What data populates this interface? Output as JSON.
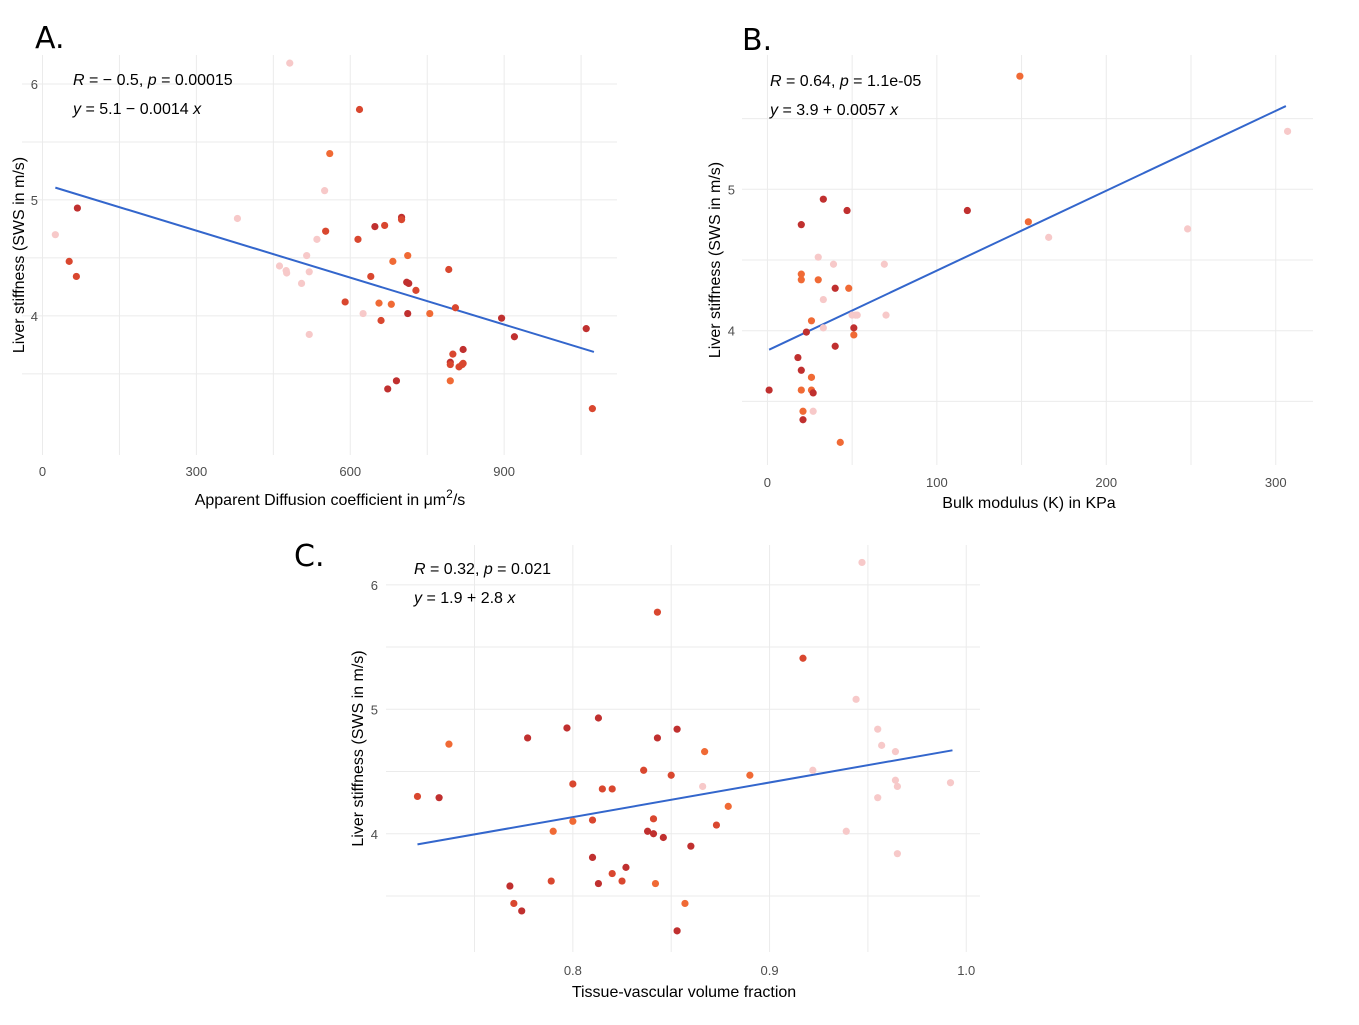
{
  "colors": {
    "group_dark": "#c0302f",
    "group_red": "#d9472f",
    "group_orange": "#f06a35",
    "group_pink": "#f7c9c9",
    "fit_line": "#3366cc",
    "grid": "#ebebeb"
  },
  "chart_data": [
    {
      "panel": "A.",
      "type": "scatter",
      "title": "",
      "xlabel": "Apparent Diffusion coefficient in μm²/s",
      "xlabel_main": "Apparent Diffusion coefficient in μm",
      "xlabel_sup": "2",
      "xlabel_tail": "/s",
      "ylabel": "Liver stiffness (SWS in m/s)",
      "xlim": [
        -40,
        1120
      ],
      "ylim": [
        2.8,
        6.25
      ],
      "x_ticks": [
        0,
        300,
        600,
        900
      ],
      "x_tick_labels": [
        "0",
        "300",
        "600",
        "900"
      ],
      "y_ticks": [
        4,
        5,
        6
      ],
      "y_tick_labels": [
        "4",
        "5",
        "6"
      ],
      "x_minor": [
        150,
        450,
        750,
        1050
      ],
      "y_minor": [
        3.5,
        4.5,
        5.5
      ],
      "grid": true,
      "stat_line1": {
        "R": "R",
        "eq": " = − 0.5, ",
        "p": "p",
        "pval": " = 0.00015"
      },
      "stat_line2": {
        "y": "y",
        "eq": " = 5.1 − 0.0014 ",
        "x": "x"
      },
      "fit": {
        "intercept": 5.14,
        "slope": -0.00135,
        "x_range": [
          25,
          1075
        ]
      },
      "points": [
        {
          "x": 25,
          "y": 4.7,
          "g": "pink"
        },
        {
          "x": 52,
          "y": 4.47,
          "g": "red"
        },
        {
          "x": 66,
          "y": 4.34,
          "g": "red"
        },
        {
          "x": 68,
          "y": 4.93,
          "g": "dark"
        },
        {
          "x": 380,
          "y": 4.84,
          "g": "pink"
        },
        {
          "x": 462,
          "y": 4.43,
          "g": "pink"
        },
        {
          "x": 475,
          "y": 4.39,
          "g": "pink"
        },
        {
          "x": 476,
          "y": 4.37,
          "g": "pink"
        },
        {
          "x": 482,
          "y": 6.18,
          "g": "pink"
        },
        {
          "x": 505,
          "y": 4.28,
          "g": "pink"
        },
        {
          "x": 515,
          "y": 4.52,
          "g": "pink"
        },
        {
          "x": 520,
          "y": 4.38,
          "g": "pink"
        },
        {
          "x": 520,
          "y": 3.84,
          "g": "pink"
        },
        {
          "x": 535,
          "y": 4.66,
          "g": "pink"
        },
        {
          "x": 550,
          "y": 5.08,
          "g": "pink"
        },
        {
          "x": 552,
          "y": 4.73,
          "g": "red"
        },
        {
          "x": 560,
          "y": 5.4,
          "g": "orange"
        },
        {
          "x": 590,
          "y": 4.12,
          "g": "red"
        },
        {
          "x": 615,
          "y": 4.66,
          "g": "red"
        },
        {
          "x": 618,
          "y": 5.78,
          "g": "red"
        },
        {
          "x": 625,
          "y": 4.02,
          "g": "pink"
        },
        {
          "x": 640,
          "y": 4.34,
          "g": "red"
        },
        {
          "x": 648,
          "y": 4.77,
          "g": "dark"
        },
        {
          "x": 656,
          "y": 4.11,
          "g": "orange"
        },
        {
          "x": 660,
          "y": 3.96,
          "g": "red"
        },
        {
          "x": 667,
          "y": 4.78,
          "g": "red"
        },
        {
          "x": 673,
          "y": 3.37,
          "g": "dark"
        },
        {
          "x": 680,
          "y": 4.1,
          "g": "orange"
        },
        {
          "x": 683,
          "y": 4.47,
          "g": "orange"
        },
        {
          "x": 690,
          "y": 3.44,
          "g": "dark"
        },
        {
          "x": 700,
          "y": 4.85,
          "g": "dark"
        },
        {
          "x": 700,
          "y": 4.83,
          "g": "red"
        },
        {
          "x": 710,
          "y": 4.29,
          "g": "dark"
        },
        {
          "x": 712,
          "y": 4.52,
          "g": "orange"
        },
        {
          "x": 712,
          "y": 4.02,
          "g": "dark"
        },
        {
          "x": 714,
          "y": 4.28,
          "g": "dark"
        },
        {
          "x": 728,
          "y": 4.22,
          "g": "red"
        },
        {
          "x": 755,
          "y": 4.02,
          "g": "orange"
        },
        {
          "x": 792,
          "y": 4.4,
          "g": "red"
        },
        {
          "x": 795,
          "y": 3.6,
          "g": "dark"
        },
        {
          "x": 795,
          "y": 3.58,
          "g": "red"
        },
        {
          "x": 795,
          "y": 3.44,
          "g": "orange"
        },
        {
          "x": 800,
          "y": 3.67,
          "g": "red"
        },
        {
          "x": 805,
          "y": 4.07,
          "g": "red"
        },
        {
          "x": 812,
          "y": 3.56,
          "g": "red"
        },
        {
          "x": 818,
          "y": 3.58,
          "g": "red"
        },
        {
          "x": 820,
          "y": 3.59,
          "g": "red"
        },
        {
          "x": 820,
          "y": 3.71,
          "g": "dark"
        },
        {
          "x": 895,
          "y": 3.98,
          "g": "dark"
        },
        {
          "x": 920,
          "y": 3.82,
          "g": "dark"
        },
        {
          "x": 1060,
          "y": 3.89,
          "g": "dark"
        },
        {
          "x": 1072,
          "y": 3.2,
          "g": "red"
        }
      ]
    },
    {
      "panel": "B.",
      "type": "scatter",
      "title": "",
      "xlabel": "Bulk modulus (K) in KPa",
      "xlabel_main": "Bulk modulus (K) in KPa",
      "xlabel_sup": "",
      "xlabel_tail": "",
      "ylabel": "Liver stiffness (SWS in m/s)",
      "xlim": [
        -15,
        322
      ],
      "ylim": [
        3.05,
        5.95
      ],
      "x_ticks": [
        0,
        100,
        200,
        300
      ],
      "x_tick_labels": [
        "0",
        "100",
        "200",
        "300"
      ],
      "y_ticks": [
        4,
        5
      ],
      "y_tick_labels": [
        "4",
        "5"
      ],
      "x_minor": [
        50,
        150,
        250
      ],
      "y_minor": [
        3.5,
        4.5,
        5.5
      ],
      "grid": true,
      "stat_line1": {
        "R": "R",
        "eq": " = 0.64, ",
        "p": "p",
        "pval": " = 1.1e-05"
      },
      "stat_line2": {
        "y": "y",
        "eq": " = 3.9 + 0.0057 ",
        "x": "x"
      },
      "fit": {
        "intercept": 3.86,
        "slope": 0.00565,
        "x_range": [
          1,
          306
        ]
      },
      "points": [
        {
          "x": 1,
          "y": 3.58,
          "g": "dark"
        },
        {
          "x": 18,
          "y": 3.81,
          "g": "dark"
        },
        {
          "x": 20,
          "y": 4.75,
          "g": "dark"
        },
        {
          "x": 20,
          "y": 4.4,
          "g": "orange"
        },
        {
          "x": 20,
          "y": 4.36,
          "g": "orange"
        },
        {
          "x": 20,
          "y": 3.72,
          "g": "dark"
        },
        {
          "x": 20,
          "y": 3.58,
          "g": "orange"
        },
        {
          "x": 21,
          "y": 3.43,
          "g": "orange"
        },
        {
          "x": 21,
          "y": 3.37,
          "g": "dark"
        },
        {
          "x": 23,
          "y": 3.99,
          "g": "dark"
        },
        {
          "x": 26,
          "y": 4.07,
          "g": "orange"
        },
        {
          "x": 26,
          "y": 3.67,
          "g": "orange"
        },
        {
          "x": 26,
          "y": 3.58,
          "g": "orange"
        },
        {
          "x": 27,
          "y": 3.56,
          "g": "dark"
        },
        {
          "x": 27,
          "y": 3.43,
          "g": "pink"
        },
        {
          "x": 30,
          "y": 4.52,
          "g": "pink"
        },
        {
          "x": 30,
          "y": 4.36,
          "g": "orange"
        },
        {
          "x": 33,
          "y": 4.93,
          "g": "dark"
        },
        {
          "x": 33,
          "y": 4.22,
          "g": "pink"
        },
        {
          "x": 33,
          "y": 4.02,
          "g": "pink"
        },
        {
          "x": 39,
          "y": 4.47,
          "g": "pink"
        },
        {
          "x": 40,
          "y": 4.3,
          "g": "dark"
        },
        {
          "x": 40,
          "y": 3.89,
          "g": "dark"
        },
        {
          "x": 43,
          "y": 3.21,
          "g": "orange"
        },
        {
          "x": 47,
          "y": 4.85,
          "g": "dark"
        },
        {
          "x": 48,
          "y": 4.3,
          "g": "orange"
        },
        {
          "x": 50,
          "y": 4.11,
          "g": "pink"
        },
        {
          "x": 51,
          "y": 3.97,
          "g": "orange"
        },
        {
          "x": 51,
          "y": 4.02,
          "g": "dark"
        },
        {
          "x": 52,
          "y": 4.11,
          "g": "pink"
        },
        {
          "x": 53,
          "y": 4.11,
          "g": "pink"
        },
        {
          "x": 69,
          "y": 4.47,
          "g": "pink"
        },
        {
          "x": 70,
          "y": 4.11,
          "g": "pink"
        },
        {
          "x": 118,
          "y": 4.85,
          "g": "dark"
        },
        {
          "x": 149,
          "y": 5.8,
          "g": "orange"
        },
        {
          "x": 154,
          "y": 4.77,
          "g": "orange"
        },
        {
          "x": 166,
          "y": 4.66,
          "g": "pink"
        },
        {
          "x": 248,
          "y": 4.72,
          "g": "pink"
        },
        {
          "x": 307,
          "y": 5.41,
          "g": "pink"
        }
      ]
    },
    {
      "panel": "C.",
      "type": "scatter",
      "title": "",
      "xlabel": "Tissue-vascular volume fraction",
      "xlabel_main": "Tissue-vascular volume fraction",
      "xlabel_sup": "",
      "xlabel_tail": "",
      "ylabel": "Liver stiffness (SWS in m/s)",
      "xlim": [
        0.705,
        1.007
      ],
      "ylim": [
        3.05,
        6.32
      ],
      "x_ticks": [
        0.8,
        0.9,
        1.0
      ],
      "x_tick_labels": [
        "0.8",
        "0.9",
        "1.0"
      ],
      "y_ticks": [
        4,
        5,
        6
      ],
      "y_tick_labels": [
        "4",
        "5",
        "6"
      ],
      "x_minor": [
        0.75,
        0.85,
        0.95
      ],
      "y_minor": [
        3.5,
        4.5,
        5.5
      ],
      "grid": true,
      "stat_line1": {
        "R": "R",
        "eq": " = 0.32, ",
        "p": "p",
        "pval": " = 0.021"
      },
      "stat_line2": {
        "y": "y",
        "eq": " = 1.9 + 2.8 ",
        "x": "x"
      },
      "fit": {
        "intercept": 1.91,
        "slope": 2.78,
        "x_range": [
          0.721,
          0.993
        ]
      },
      "points": [
        {
          "x": 0.721,
          "y": 4.3,
          "g": "red"
        },
        {
          "x": 0.732,
          "y": 4.29,
          "g": "dark"
        },
        {
          "x": 0.737,
          "y": 4.72,
          "g": "orange"
        },
        {
          "x": 0.768,
          "y": 3.58,
          "g": "dark"
        },
        {
          "x": 0.77,
          "y": 3.44,
          "g": "red"
        },
        {
          "x": 0.774,
          "y": 3.38,
          "g": "dark"
        },
        {
          "x": 0.777,
          "y": 4.77,
          "g": "dark"
        },
        {
          "x": 0.789,
          "y": 3.62,
          "g": "red"
        },
        {
          "x": 0.79,
          "y": 4.02,
          "g": "orange"
        },
        {
          "x": 0.797,
          "y": 4.85,
          "g": "dark"
        },
        {
          "x": 0.8,
          "y": 4.4,
          "g": "red"
        },
        {
          "x": 0.8,
          "y": 4.1,
          "g": "orange"
        },
        {
          "x": 0.81,
          "y": 4.11,
          "g": "red"
        },
        {
          "x": 0.81,
          "y": 3.81,
          "g": "dark"
        },
        {
          "x": 0.813,
          "y": 4.93,
          "g": "dark"
        },
        {
          "x": 0.813,
          "y": 3.6,
          "g": "dark"
        },
        {
          "x": 0.815,
          "y": 4.36,
          "g": "red"
        },
        {
          "x": 0.82,
          "y": 4.36,
          "g": "red"
        },
        {
          "x": 0.82,
          "y": 3.68,
          "g": "red"
        },
        {
          "x": 0.825,
          "y": 3.62,
          "g": "red"
        },
        {
          "x": 0.827,
          "y": 3.73,
          "g": "dark"
        },
        {
          "x": 0.836,
          "y": 4.51,
          "g": "red"
        },
        {
          "x": 0.838,
          "y": 4.02,
          "g": "dark"
        },
        {
          "x": 0.841,
          "y": 4.12,
          "g": "red"
        },
        {
          "x": 0.841,
          "y": 4.0,
          "g": "dark"
        },
        {
          "x": 0.842,
          "y": 3.6,
          "g": "orange"
        },
        {
          "x": 0.843,
          "y": 5.78,
          "g": "red"
        },
        {
          "x": 0.843,
          "y": 4.77,
          "g": "dark"
        },
        {
          "x": 0.846,
          "y": 3.97,
          "g": "dark"
        },
        {
          "x": 0.85,
          "y": 4.47,
          "g": "red"
        },
        {
          "x": 0.853,
          "y": 4.84,
          "g": "dark"
        },
        {
          "x": 0.853,
          "y": 3.22,
          "g": "dark"
        },
        {
          "x": 0.857,
          "y": 3.44,
          "g": "orange"
        },
        {
          "x": 0.86,
          "y": 3.9,
          "g": "dark"
        },
        {
          "x": 0.866,
          "y": 4.38,
          "g": "pink"
        },
        {
          "x": 0.867,
          "y": 4.66,
          "g": "orange"
        },
        {
          "x": 0.873,
          "y": 4.07,
          "g": "red"
        },
        {
          "x": 0.879,
          "y": 4.22,
          "g": "orange"
        },
        {
          "x": 0.89,
          "y": 4.47,
          "g": "orange"
        },
        {
          "x": 0.917,
          "y": 5.41,
          "g": "red"
        },
        {
          "x": 0.922,
          "y": 4.51,
          "g": "pink"
        },
        {
          "x": 0.939,
          "y": 4.02,
          "g": "pink"
        },
        {
          "x": 0.944,
          "y": 5.08,
          "g": "pink"
        },
        {
          "x": 0.947,
          "y": 6.18,
          "g": "pink"
        },
        {
          "x": 0.955,
          "y": 4.84,
          "g": "pink"
        },
        {
          "x": 0.955,
          "y": 4.29,
          "g": "pink"
        },
        {
          "x": 0.957,
          "y": 4.71,
          "g": "pink"
        },
        {
          "x": 0.964,
          "y": 4.66,
          "g": "pink"
        },
        {
          "x": 0.964,
          "y": 4.43,
          "g": "pink"
        },
        {
          "x": 0.965,
          "y": 4.38,
          "g": "pink"
        },
        {
          "x": 0.965,
          "y": 3.84,
          "g": "pink"
        },
        {
          "x": 0.992,
          "y": 4.41,
          "g": "pink"
        }
      ]
    }
  ]
}
